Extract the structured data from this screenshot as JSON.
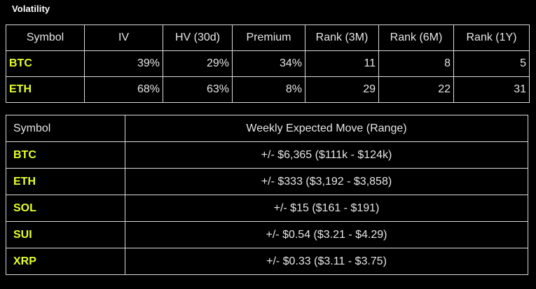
{
  "title": "Volatility",
  "colors": {
    "background": "#000000",
    "symbol": "#e6ff2c",
    "text": "#e6e6e6",
    "border": "#d9d9d9"
  },
  "volatility_table": {
    "headers": [
      "Symbol",
      "IV",
      "HV (30d)",
      "Premium",
      "Rank (3M)",
      "Rank (6M)",
      "Rank (1Y)"
    ],
    "rows": [
      {
        "symbol": "BTC",
        "iv": "39%",
        "hv30": "29%",
        "premium": "34%",
        "rank3m": "11",
        "rank6m": "8",
        "rank1y": "5"
      },
      {
        "symbol": "ETH",
        "iv": "68%",
        "hv30": "63%",
        "premium": "8%",
        "rank3m": "29",
        "rank6m": "22",
        "rank1y": "31"
      }
    ]
  },
  "expected_move_table": {
    "headers": [
      "Symbol",
      "Weekly Expected Move (Range)"
    ],
    "rows": [
      {
        "symbol": "BTC",
        "move": "+/- $6,365 ($111k - $124k)"
      },
      {
        "symbol": "ETH",
        "move": "+/- $333 ($3,192 - $3,858)"
      },
      {
        "symbol": "SOL",
        "move": "+/- $15 ($161 - $191)"
      },
      {
        "symbol": "SUI",
        "move": "+/- $0.54 ($3.21 - $4.29)"
      },
      {
        "symbol": "XRP",
        "move": "+/- $0.33 ($3.11 - $3.75)"
      }
    ]
  }
}
